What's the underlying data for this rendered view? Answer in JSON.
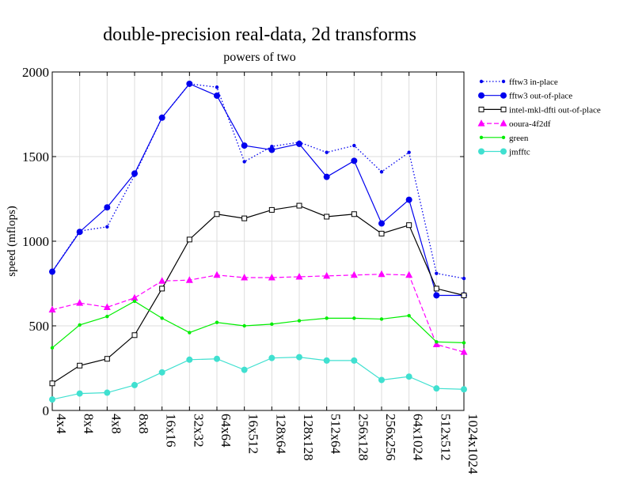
{
  "chart_data": {
    "type": "line",
    "title": "double-precision real-data, 2d transforms",
    "subtitle": "powers of two",
    "xlabel": "",
    "ylabel": "speed (mflops)",
    "ylim": [
      0,
      2000
    ],
    "yticks": [
      0,
      500,
      1000,
      1500,
      2000
    ],
    "grid": true,
    "legend_position": "right",
    "categories": [
      "4x4",
      "8x4",
      "4x8",
      "8x8",
      "16x16",
      "32x32",
      "64x64",
      "16x512",
      "128x64",
      "128x128",
      "512x64",
      "256x128",
      "256x256",
      "64x1024",
      "512x512",
      "1024x1024"
    ],
    "series": [
      {
        "name": "fftw3 in-place",
        "color": "#0000ee",
        "dash": "dotted",
        "marker": "small-dot",
        "values": [
          820,
          1060,
          1085,
          1390,
          1730,
          1930,
          1910,
          1470,
          1560,
          1585,
          1525,
          1565,
          1410,
          1525,
          810,
          780
        ]
      },
      {
        "name": "fftw3 out-of-place",
        "color": "#0000ee",
        "dash": "solid",
        "marker": "dot",
        "values": [
          820,
          1055,
          1200,
          1400,
          1730,
          1930,
          1860,
          1565,
          1540,
          1575,
          1380,
          1475,
          1105,
          1245,
          680,
          680
        ]
      },
      {
        "name": "intel-mkl-dfti out-of-place",
        "color": "#000000",
        "dash": "solid",
        "marker": "square",
        "values": [
          160,
          265,
          305,
          445,
          720,
          1010,
          1160,
          1135,
          1185,
          1210,
          1145,
          1160,
          1045,
          1095,
          720,
          680
        ]
      },
      {
        "name": "ooura-4f2df",
        "color": "#ff00ff",
        "dash": "dashed",
        "marker": "triangle",
        "values": [
          595,
          635,
          610,
          665,
          765,
          770,
          800,
          785,
          785,
          790,
          795,
          800,
          805,
          800,
          390,
          345
        ]
      },
      {
        "name": "green",
        "color": "#00ee00",
        "dash": "solid",
        "marker": "small-dot",
        "values": [
          370,
          505,
          555,
          645,
          545,
          460,
          520,
          500,
          510,
          530,
          545,
          545,
          540,
          560,
          405,
          400
        ]
      },
      {
        "name": "jmfftc",
        "color": "#40e0d0",
        "dash": "solid",
        "marker": "dot",
        "values": [
          65,
          100,
          105,
          150,
          225,
          300,
          305,
          240,
          310,
          315,
          295,
          295,
          180,
          200,
          130,
          125
        ]
      }
    ]
  }
}
